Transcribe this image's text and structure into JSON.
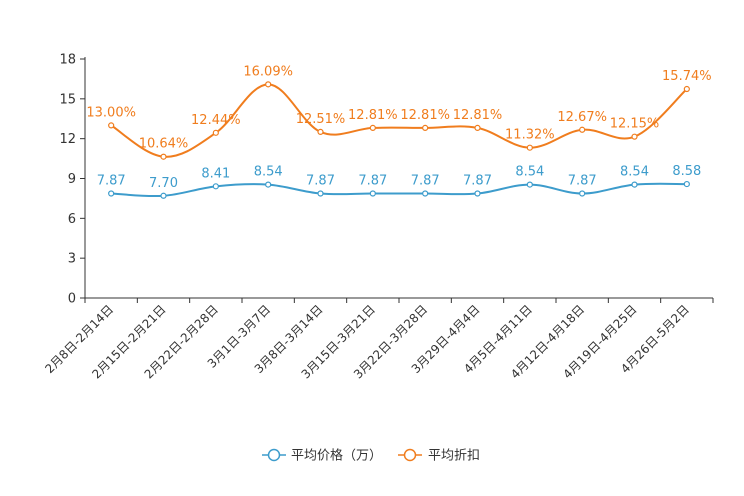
{
  "chart_data": {
    "type": "line",
    "title": "",
    "xlabel": "",
    "ylabel": "",
    "ylim": [
      0,
      18
    ],
    "yticks": [
      "0",
      "3",
      "6",
      "9",
      "12",
      "15",
      "18"
    ],
    "categories": [
      "2月8日-2月14日",
      "2月15日-2月21日",
      "2月22日-2月28日",
      "3月1日-3月7日",
      "3月8日-3月14日",
      "3月15日-3月21日",
      "3月22日-3月28日",
      "3月29日-4月4日",
      "4月5日-4月11日",
      "4月12日-4月18日",
      "4月19日-4月25日",
      "4月26日-5月2日"
    ],
    "series": [
      {
        "name": "平均价格（万）",
        "color": "#3d9ccc",
        "values": [
          7.87,
          7.7,
          8.41,
          8.54,
          7.87,
          7.87,
          7.87,
          7.87,
          8.54,
          7.87,
          8.54,
          8.58
        ],
        "labels": [
          "7.87",
          "7.70",
          "8.41",
          "8.54",
          "7.87",
          "7.87",
          "7.87",
          "7.87",
          "8.54",
          "7.87",
          "8.54",
          "8.58"
        ]
      },
      {
        "name": "平均折扣",
        "color": "#f07d1e",
        "values": [
          13.0,
          10.64,
          12.44,
          16.09,
          12.51,
          12.81,
          12.81,
          12.81,
          11.32,
          12.67,
          12.15,
          15.74
        ],
        "labels": [
          "13.00%",
          "10.64%",
          "12.44%",
          "16.09%",
          "12.51%",
          "12.81%",
          "12.81%",
          "12.81%",
          "11.32%",
          "12.67%",
          "12.15%",
          "15.74%"
        ]
      }
    ],
    "legend_position": "bottom-center"
  }
}
